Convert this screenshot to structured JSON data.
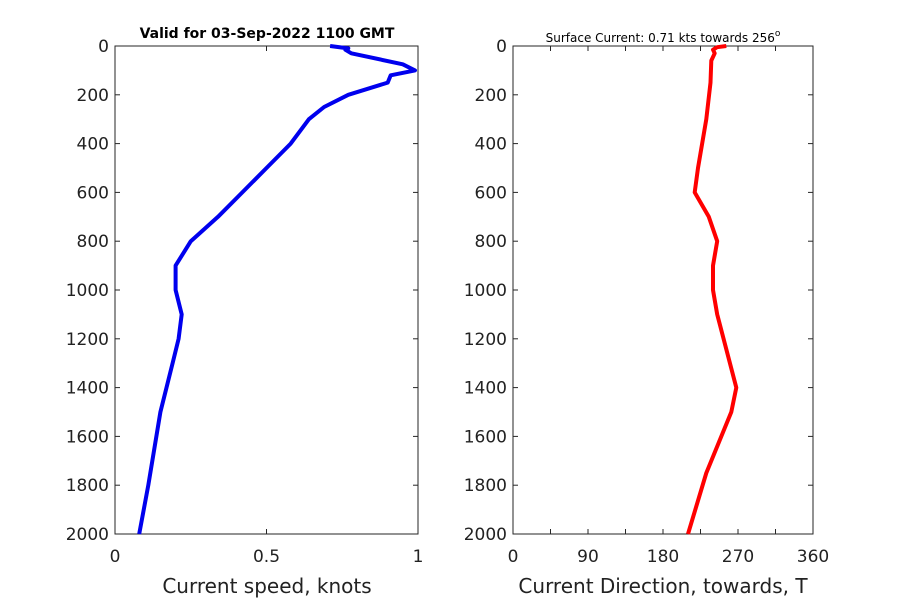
{
  "chart_data": [
    {
      "type": "line",
      "title": "Valid for 03-Sep-2022 1100 GMT",
      "xlabel": "Current speed, knots",
      "ylabel": "",
      "xlim": [
        0,
        1
      ],
      "ylim": [
        0,
        2000
      ],
      "y_reversed": true,
      "x_ticks": [
        "0",
        "0.5",
        "1"
      ],
      "y_ticks": [
        "0",
        "200",
        "400",
        "600",
        "800",
        "1000",
        "1200",
        "1400",
        "1600",
        "1800",
        "2000"
      ],
      "grid": false,
      "series": [
        {
          "color": "#0000ee",
          "x": [
            0.71,
            0.77,
            0.76,
            0.78,
            0.95,
            0.99,
            0.91,
            0.9,
            0.77,
            0.69,
            0.64,
            0.58,
            0.5,
            0.42,
            0.34,
            0.25,
            0.2,
            0.2,
            0.22,
            0.21,
            0.19,
            0.17,
            0.15,
            0.11,
            0.08
          ],
          "y": [
            0,
            10,
            15,
            30,
            75,
            100,
            120,
            150,
            200,
            250,
            300,
            400,
            500,
            600,
            700,
            800,
            900,
            1000,
            1100,
            1200,
            1300,
            1400,
            1500,
            1800,
            2000
          ]
        }
      ]
    },
    {
      "type": "line",
      "title": "Surface Current: 0.71 kts towards 256",
      "title_superscript": "o",
      "xlabel": "Current Direction, towards, T",
      "ylabel": "",
      "xlim": [
        0,
        360
      ],
      "ylim": [
        0,
        2000
      ],
      "y_reversed": true,
      "x_ticks": [
        "0",
        "90",
        "180",
        "270",
        "360"
      ],
      "y_ticks": [
        "0",
        "200",
        "400",
        "600",
        "800",
        "1000",
        "1200",
        "1400",
        "1600",
        "1800",
        "2000"
      ],
      "grid": false,
      "series": [
        {
          "color": "#ff0000",
          "x": [
            256,
            245,
            240,
            242,
            238,
            237,
            232,
            222,
            218,
            235,
            245,
            240,
            240,
            245,
            268,
            262,
            232,
            210
          ],
          "y": [
            0,
            5,
            15,
            30,
            60,
            150,
            300,
            500,
            600,
            700,
            800,
            900,
            1000,
            1100,
            1400,
            1500,
            1750,
            2000
          ]
        }
      ]
    }
  ]
}
